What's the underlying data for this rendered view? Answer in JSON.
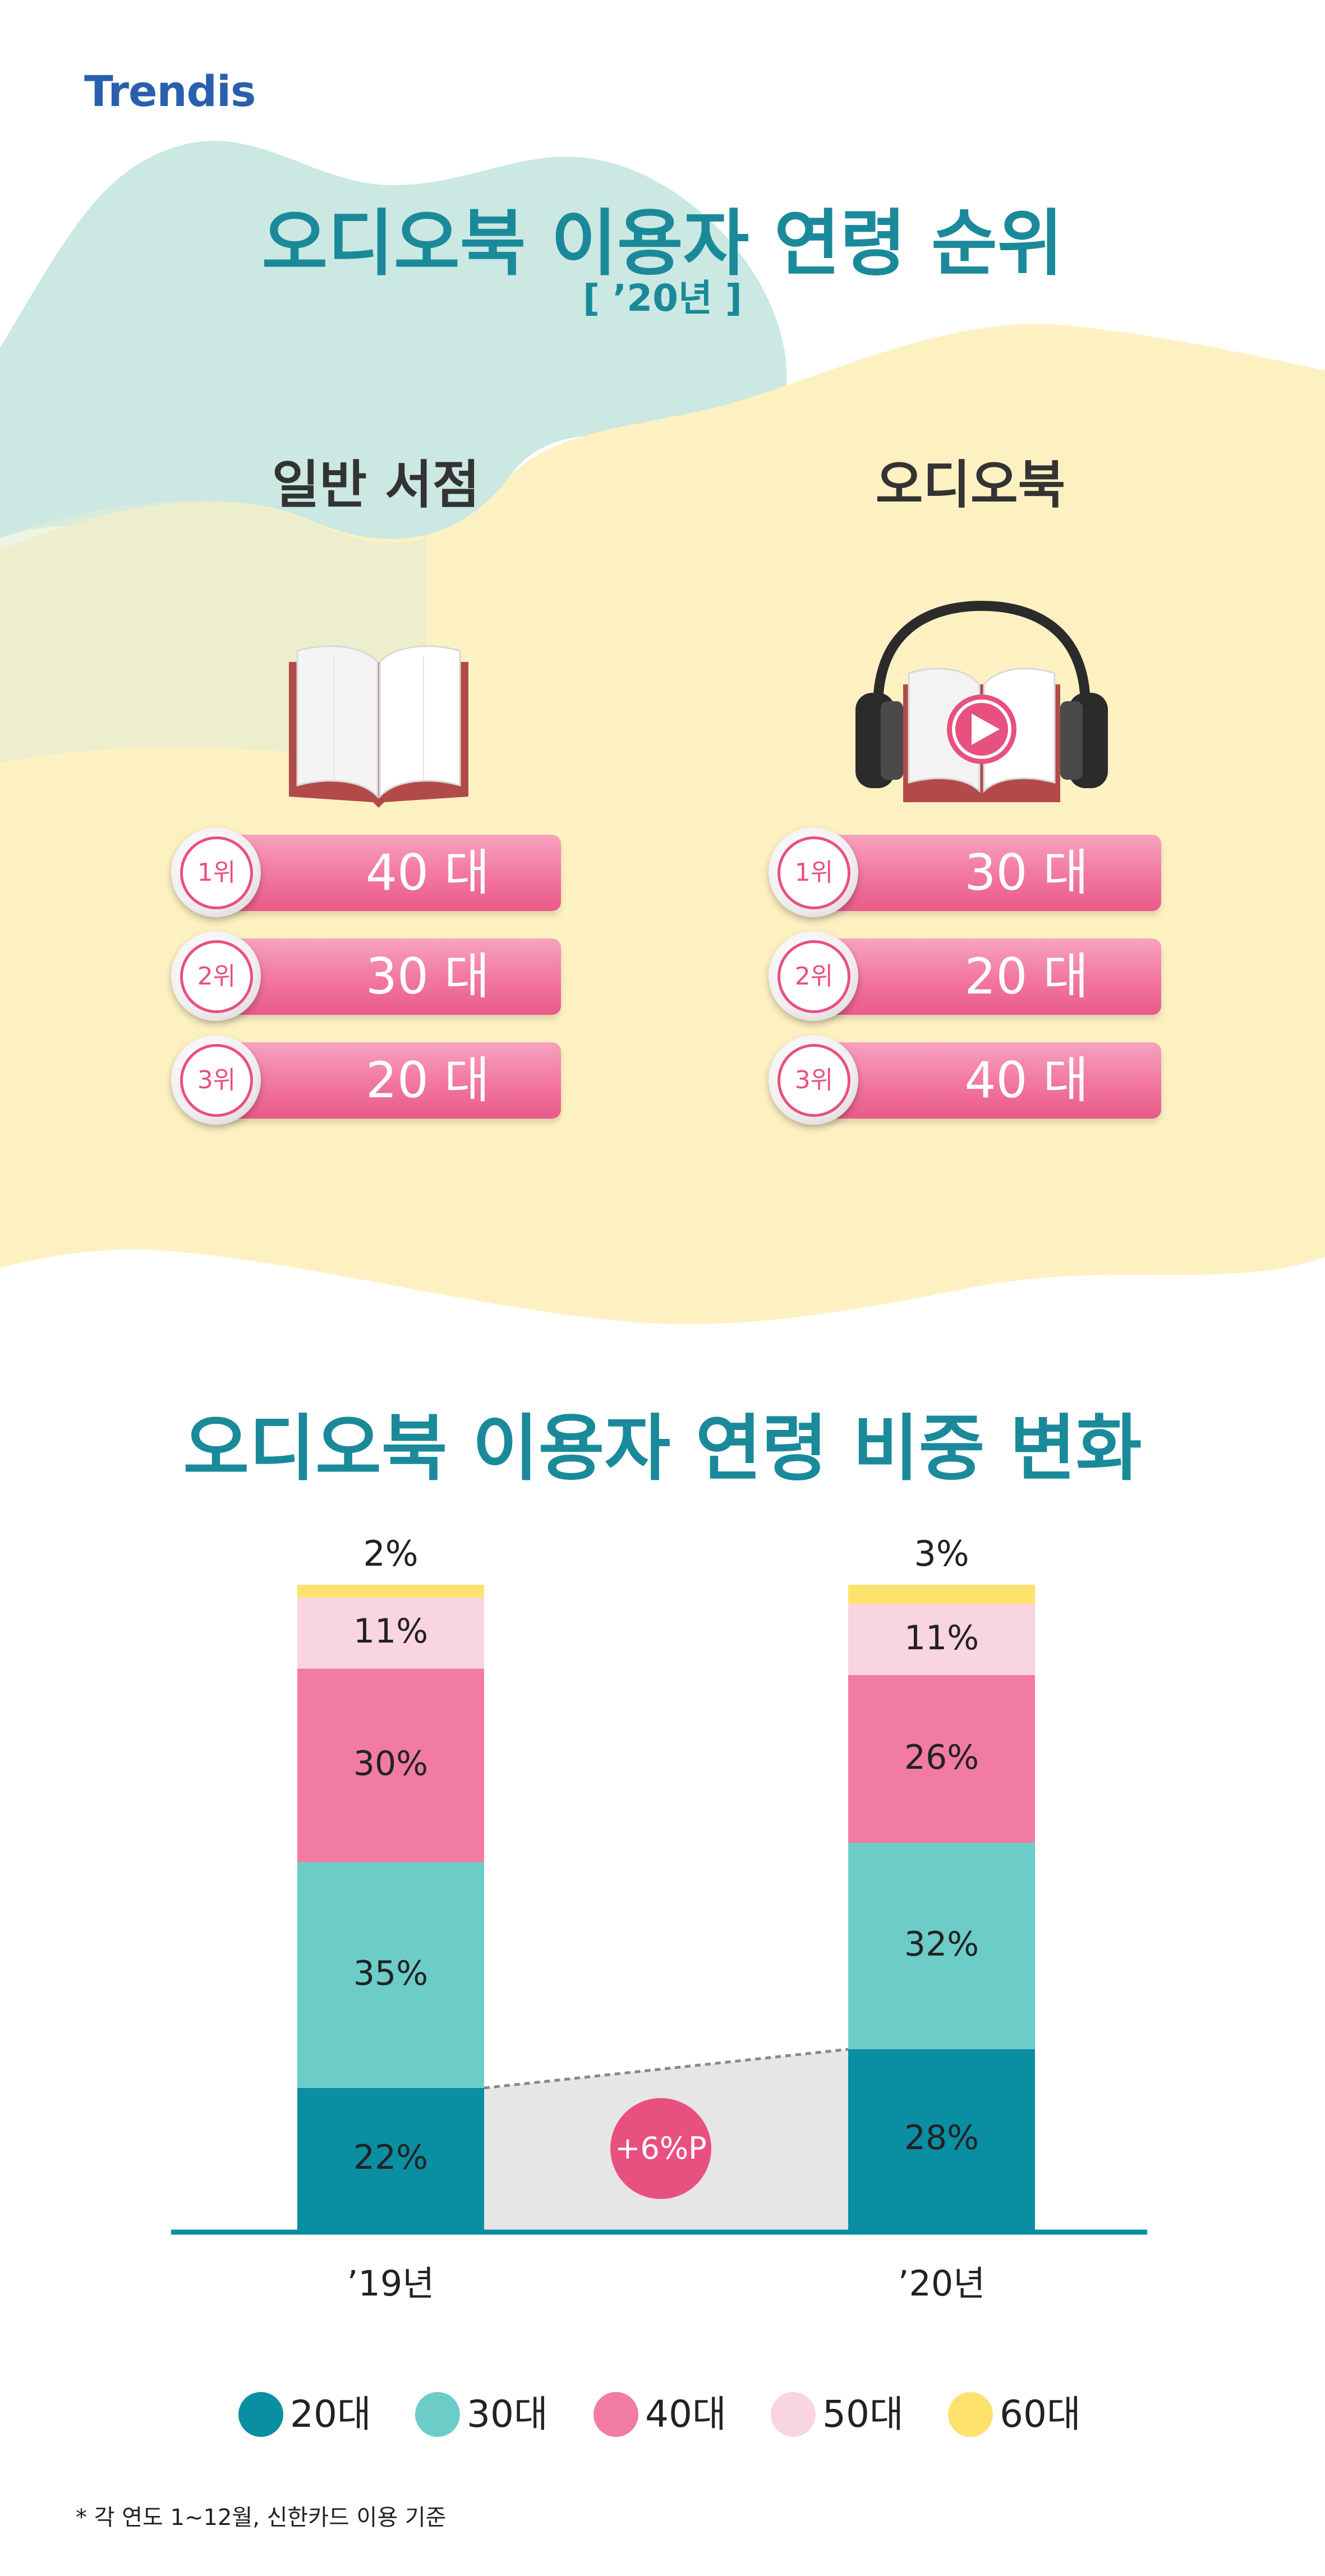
{
  "brand": {
    "logo_text": "Trendis"
  },
  "section1": {
    "title": "오디오북 이용자 연령 순위",
    "subtitle": "[ ’20년 ]",
    "columns": [
      {
        "heading": "일반 서점",
        "icon": "open-book-icon",
        "ranks": [
          {
            "rank": "1위",
            "value": "40 대"
          },
          {
            "rank": "2위",
            "value": "30 대"
          },
          {
            "rank": "3위",
            "value": "20 대"
          }
        ]
      },
      {
        "heading": "오디오북",
        "icon": "audiobook-headphones-icon",
        "ranks": [
          {
            "rank": "1위",
            "value": "30 대"
          },
          {
            "rank": "2위",
            "value": "20 대"
          },
          {
            "rank": "3위",
            "value": "40 대"
          }
        ]
      }
    ]
  },
  "section2": {
    "title": "오디오북 이용자 연령 비중 변화",
    "diff_badge": "+6%P"
  },
  "chart_data": {
    "type": "bar",
    "stacked": true,
    "categories": [
      "’19년",
      "’20년"
    ],
    "series": [
      {
        "name": "20대",
        "values": [
          22,
          28
        ],
        "labels": [
          "22%",
          "28%"
        ],
        "color": "#0a8ea2"
      },
      {
        "name": "30대",
        "values": [
          35,
          32
        ],
        "labels": [
          "35%",
          "32%"
        ],
        "color": "#6ccdc8"
      },
      {
        "name": "40대",
        "values": [
          30,
          26
        ],
        "labels": [
          "30%",
          "26%"
        ],
        "color": "#f27ba4"
      },
      {
        "name": "50대",
        "values": [
          11,
          11
        ],
        "labels": [
          "11%",
          "11%"
        ],
        "color": "#f9d4e1"
      },
      {
        "name": "60대",
        "values": [
          2,
          3
        ],
        "labels": [
          "2%",
          "3%"
        ],
        "color": "#fde36e"
      }
    ],
    "legend_position": "bottom",
    "grid": false
  },
  "footnote": "* 각 연도 1~12월, 신한카드 이용 기준",
  "colors": {
    "accent": "#1a8a9a",
    "pink": "#e8507f",
    "background_yellow": "#fdf2c4",
    "background_mint": "#c9e8e2"
  }
}
